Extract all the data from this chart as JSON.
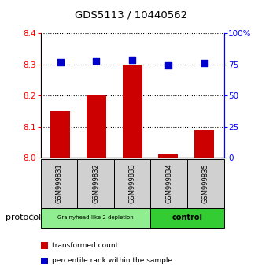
{
  "title": "GDS5113 / 10440562",
  "samples": [
    "GSM999831",
    "GSM999832",
    "GSM999833",
    "GSM999834",
    "GSM999835"
  ],
  "transformed_counts": [
    8.15,
    8.2,
    8.3,
    8.01,
    8.09
  ],
  "percentile_ranks": [
    77,
    78,
    79,
    74,
    76
  ],
  "ylim_left": [
    8.0,
    8.4
  ],
  "ylim_right": [
    0,
    100
  ],
  "yticks_left": [
    8.0,
    8.1,
    8.2,
    8.3,
    8.4
  ],
  "yticks_right": [
    0,
    25,
    50,
    75,
    100
  ],
  "ytick_labels_right": [
    "0",
    "25",
    "50",
    "75",
    "100%"
  ],
  "bar_color": "#cc0000",
  "dot_color": "#0000cc",
  "group1_label": "Grainyhead-like 2 depletion",
  "group2_label": "control",
  "group1_color": "#90ee90",
  "group2_color": "#33cc33",
  "legend_items": [
    {
      "color": "#cc0000",
      "label": "transformed count"
    },
    {
      "color": "#0000cc",
      "label": "percentile rank within the sample"
    }
  ],
  "bar_bottom": 8.0,
  "dot_size": 30,
  "bar_width": 0.55
}
